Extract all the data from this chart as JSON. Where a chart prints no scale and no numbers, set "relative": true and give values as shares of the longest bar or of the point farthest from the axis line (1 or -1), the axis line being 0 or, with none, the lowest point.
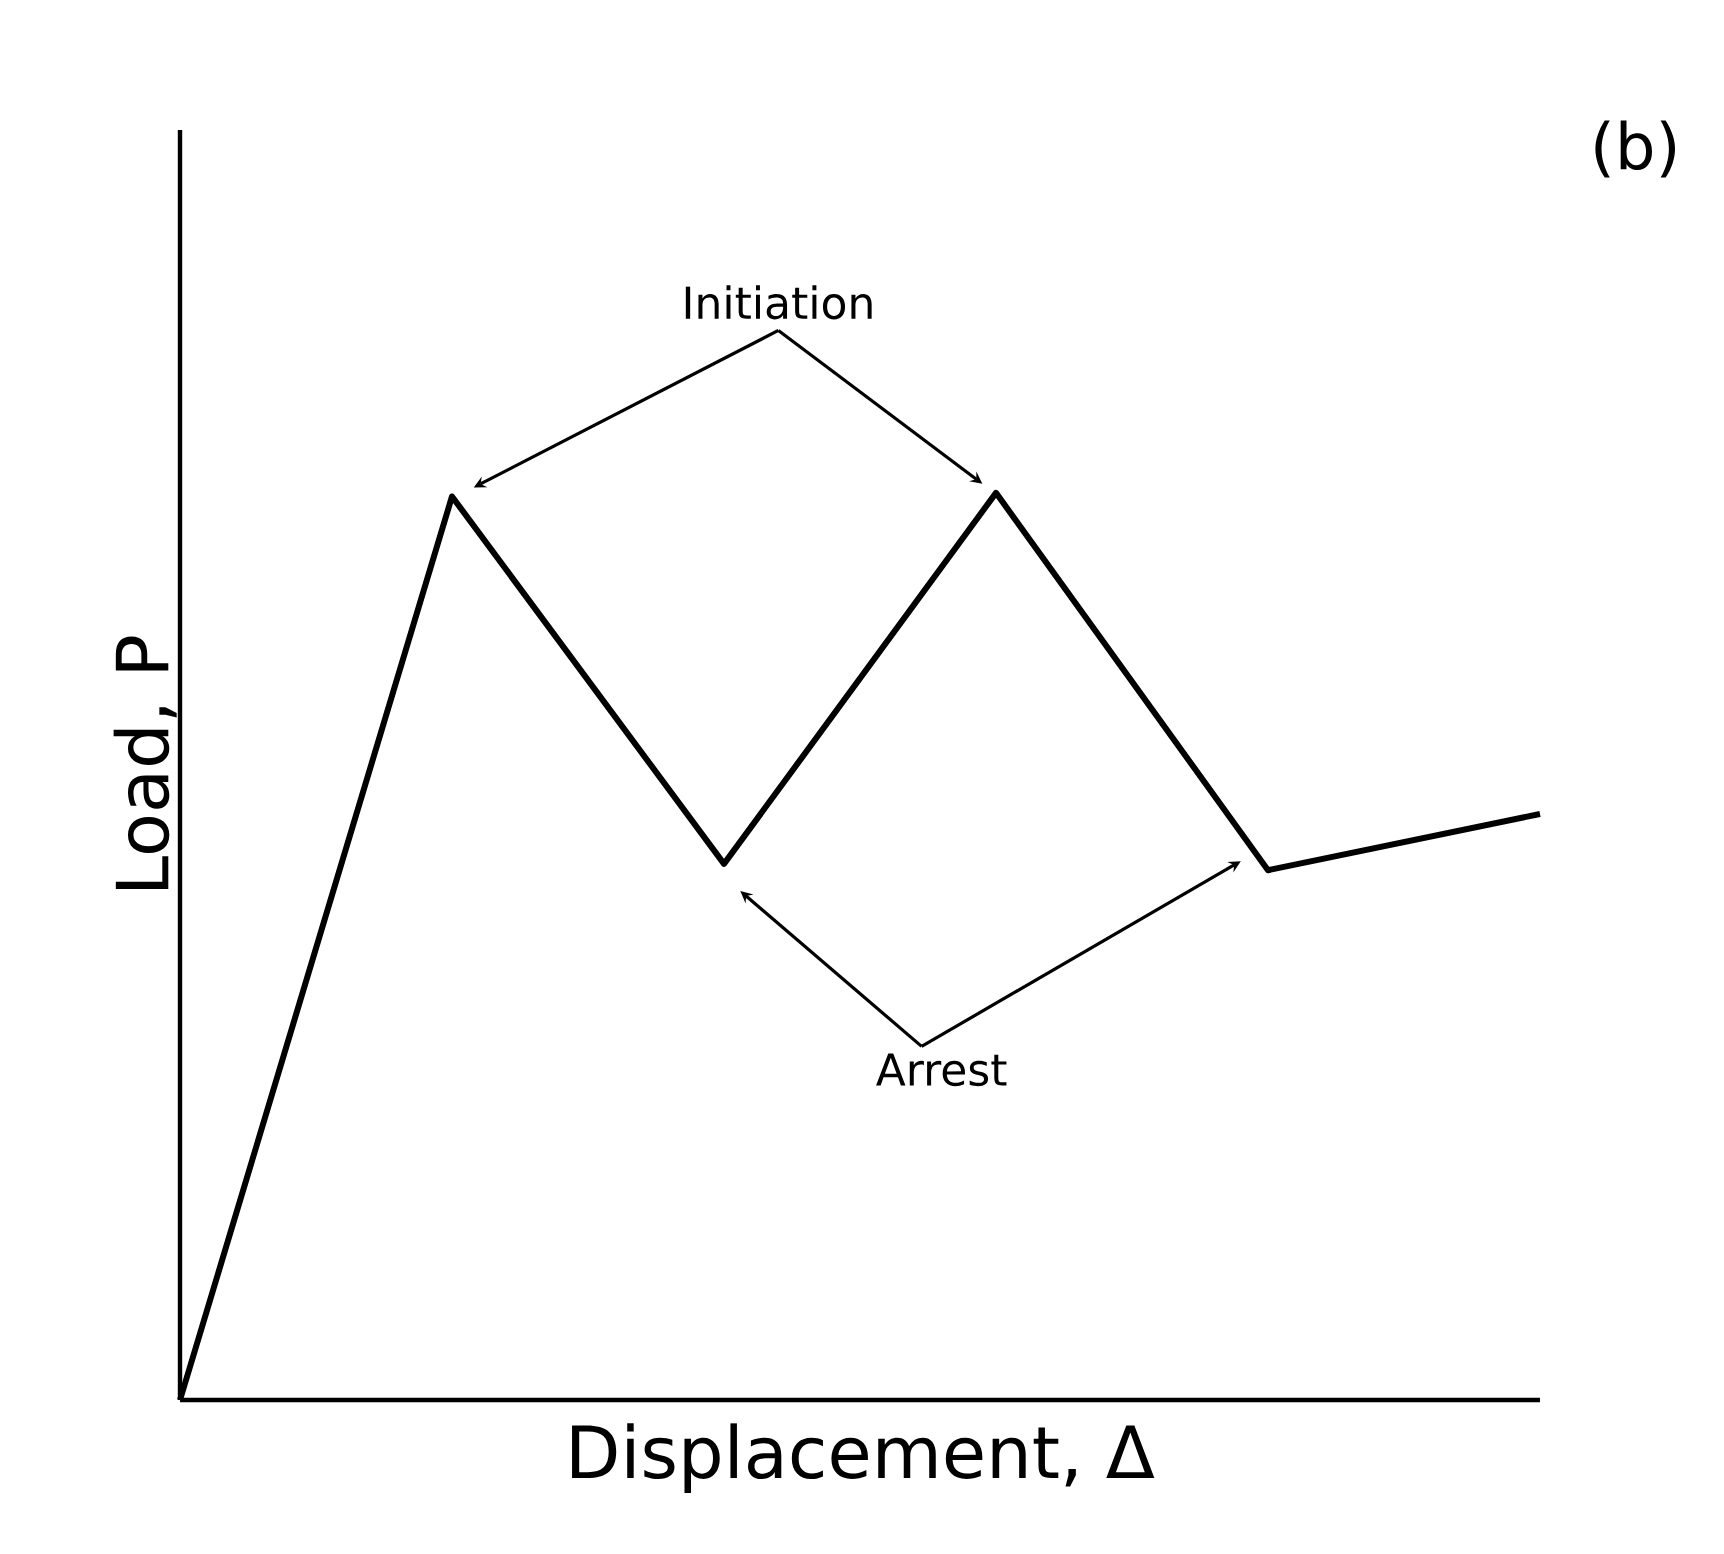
{
  "chart_data": {
    "type": "line",
    "relative": true,
    "xlabel": "Displacement, Δ",
    "ylabel": "Load, P",
    "categories": [
      null,
      null,
      null,
      null,
      null,
      null
    ],
    "series": [
      {
        "color": "#000000",
        "values": [
          0,
          0.996,
          0.591,
          1,
          0.584,
          0.646
        ]
      }
    ],
    "annotations": [
      "Initiation",
      "Arrest",
      "(b)"
    ]
  }
}
